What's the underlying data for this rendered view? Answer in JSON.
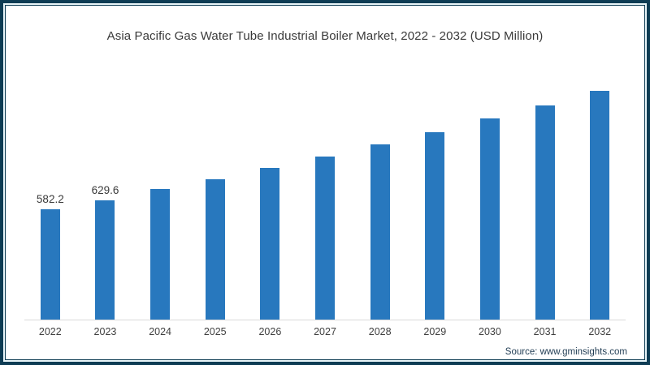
{
  "frame": {
    "border_color": "#0e3c54",
    "background": "#ffffff"
  },
  "title": "Asia Pacific Gas Water Tube Industrial Boiler Market, 2022 - 2032 (USD Million)",
  "source": "Source: www.gminsights.com",
  "chart_data": {
    "type": "bar",
    "title": "Asia Pacific Gas Water Tube Industrial Boiler Market, 2022 - 2032 (USD Million)",
    "categories": [
      "2022",
      "2023",
      "2024",
      "2025",
      "2026",
      "2027",
      "2028",
      "2029",
      "2030",
      "2031",
      "2032"
    ],
    "values": [
      582.2,
      629.6,
      687,
      739,
      797,
      857,
      922,
      987,
      1059,
      1128,
      1205
    ],
    "data_labels": [
      "582.2",
      "629.6",
      "",
      "",
      "",
      "",
      "",
      "",
      "",
      "",
      ""
    ],
    "xlabel": "",
    "ylabel": "",
    "ylim": [
      0,
      1280
    ],
    "bar_color": "#2878be",
    "axis_line_color": "#d9d9d9",
    "grid": false,
    "legend": "none",
    "notes": "Only 2022 and 2023 bars carry data labels; remaining values estimated from bar heights."
  }
}
